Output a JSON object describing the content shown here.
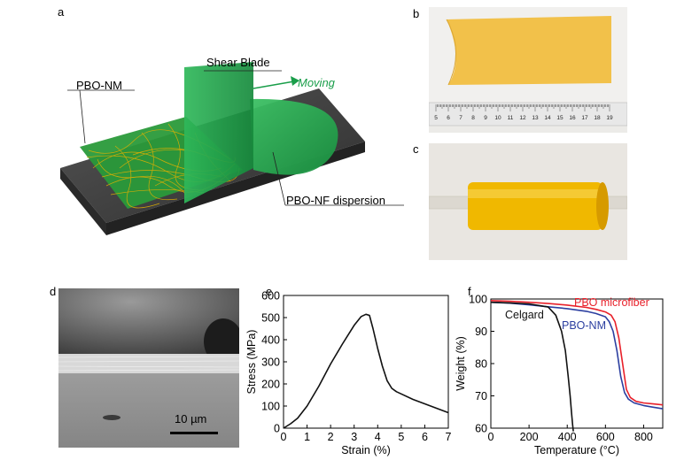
{
  "figure": {
    "panel_letters": [
      "a",
      "b",
      "c",
      "d",
      "e",
      "f"
    ],
    "panel_a": {
      "labels": {
        "shear_blade": "Shear Blade",
        "moving": "Moving",
        "membrane": "PBO-NM",
        "dispersion": "PBO-NF dispersion"
      },
      "colors": {
        "green": "#1fa24a",
        "moving_text": "#1a9e4a",
        "substrate": "#3a3a3a",
        "fibers": "#e0b000"
      }
    },
    "panel_b": {
      "ruler_numbers": [
        "5",
        "6",
        "7",
        "8",
        "9",
        "10",
        "11",
        "12",
        "13",
        "14",
        "15",
        "16",
        "17",
        "18",
        "19"
      ],
      "colors": {
        "film": "#f2c14a"
      }
    },
    "panel_c": {
      "colors": {
        "tube": "#f0b800"
      }
    },
    "panel_d": {
      "scale_bar": "10 µm"
    }
  },
  "chart_data": [
    {
      "type": "line",
      "xlabel": "Strain (%)",
      "ylabel": "Stress (MPa)",
      "xlim": [
        0,
        7
      ],
      "ylim": [
        0,
        600
      ],
      "xticks": [
        "0",
        "1",
        "2",
        "3",
        "4",
        "5",
        "6",
        "7"
      ],
      "yticks": [
        "0",
        "100",
        "200",
        "300",
        "400",
        "500",
        "600"
      ],
      "series": [
        {
          "color": "#111111",
          "x": [
            0,
            0.3,
            0.6,
            1.0,
            1.5,
            2.0,
            2.5,
            3.0,
            3.3,
            3.5,
            3.65,
            3.8,
            4.0,
            4.2,
            4.4,
            4.6,
            4.8,
            5.0,
            5.5,
            6.0,
            6.5,
            7.0
          ],
          "y": [
            0,
            20,
            45,
            100,
            190,
            290,
            380,
            465,
            505,
            515,
            510,
            450,
            360,
            280,
            215,
            180,
            165,
            155,
            130,
            110,
            90,
            70
          ]
        }
      ]
    },
    {
      "type": "line",
      "xlabel": "Temperature (°C)",
      "ylabel": "Weight (%)",
      "xlim": [
        0,
        900
      ],
      "ylim": [
        60,
        100
      ],
      "xticks": [
        "0",
        "200",
        "400",
        "600",
        "800"
      ],
      "yticks": [
        "60",
        "70",
        "80",
        "90",
        "100"
      ],
      "series": [
        {
          "name": "PBO microfiber",
          "color": "#e8202a",
          "x": [
            0,
            100,
            200,
            300,
            400,
            500,
            550,
            600,
            630,
            650,
            670,
            690,
            710,
            730,
            760,
            800,
            850,
            900
          ],
          "y": [
            99.5,
            99.3,
            99.0,
            98.6,
            98.1,
            97.4,
            96.8,
            96.0,
            95.0,
            93.0,
            88.0,
            80.0,
            72.0,
            69.5,
            68.3,
            67.8,
            67.5,
            67.2
          ]
        },
        {
          "name": "PBO-NM",
          "color": "#2c3fa0",
          "x": [
            0,
            100,
            200,
            300,
            400,
            500,
            550,
            600,
            620,
            640,
            660,
            680,
            700,
            720,
            750,
            800,
            850,
            900
          ],
          "y": [
            99.0,
            98.7,
            98.2,
            97.6,
            97.0,
            96.2,
            95.5,
            94.5,
            93.0,
            90.0,
            84.0,
            76.0,
            71.0,
            69.0,
            67.8,
            67.0,
            66.5,
            66.0
          ]
        },
        {
          "name": "Celgard",
          "color": "#111111",
          "x": [
            0,
            100,
            200,
            300,
            340,
            370,
            390,
            405,
            415,
            422,
            428,
            432
          ],
          "y": [
            99.0,
            98.8,
            98.5,
            97.5,
            95.0,
            90.0,
            84.0,
            76.0,
            70.0,
            65.0,
            61.0,
            59.0
          ]
        }
      ]
    }
  ]
}
